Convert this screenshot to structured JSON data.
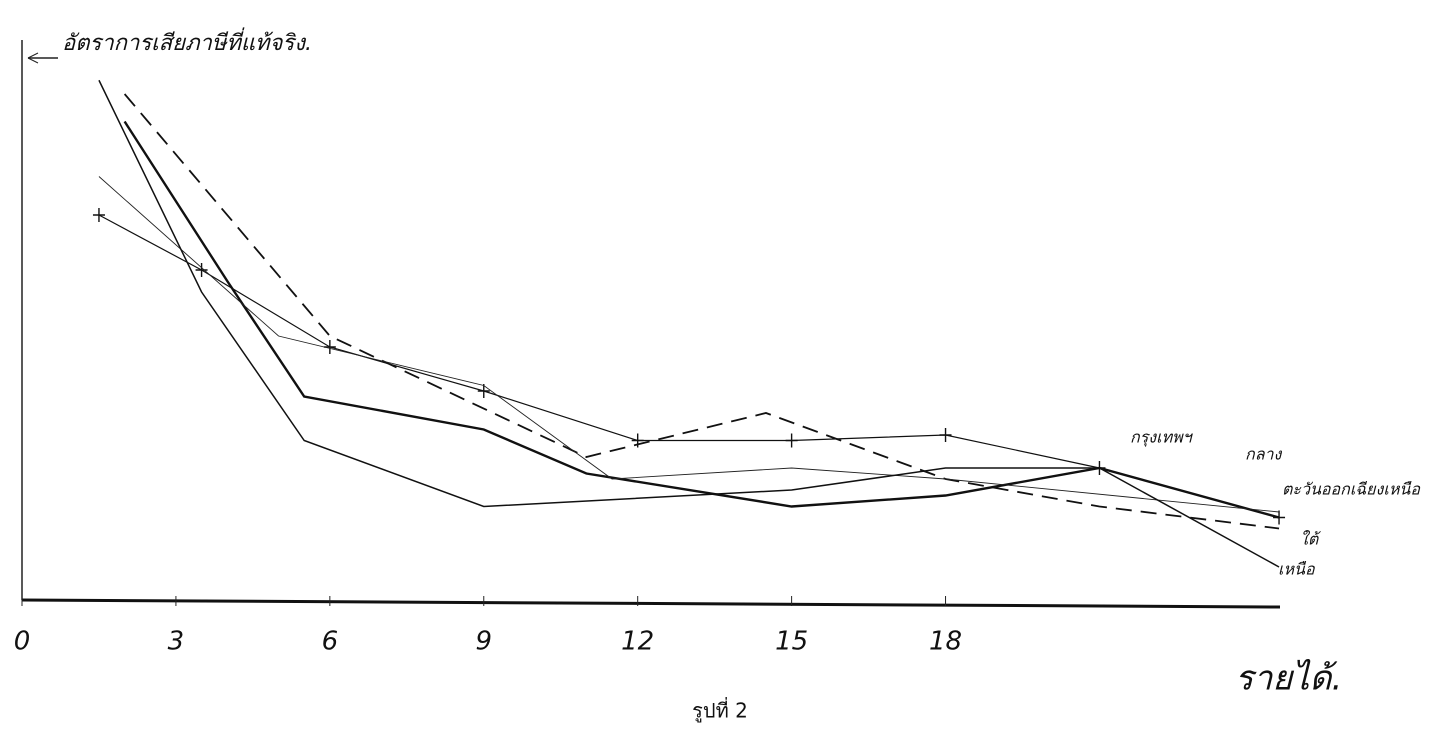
{
  "chart_data": {
    "type": "line",
    "title": "อัตราการเสียภาษีที่แท้จริง.",
    "x_label": "รายได้.",
    "caption": "รูปที่ 2",
    "xlim": [
      0,
      26
    ],
    "ylim": [
      0,
      10
    ],
    "xticks": [
      0,
      3,
      6,
      9,
      12,
      15,
      18
    ],
    "grid": false,
    "series": [
      {
        "name": "กรุงเทพฯ",
        "color": "#111111",
        "style": "crosses",
        "x": [
          1.5,
          3.5,
          6,
          9,
          12,
          15,
          18,
          21,
          24.5
        ],
        "values": [
          7.0,
          6.0,
          4.6,
          3.8,
          2.9,
          2.9,
          3.0,
          2.4,
          1.5
        ]
      },
      {
        "name": "กลาง",
        "color": "#111111",
        "style": "thick",
        "x": [
          2,
          4,
          5.5,
          9,
          11,
          15,
          18,
          21,
          24.5
        ],
        "values": [
          8.7,
          5.8,
          3.7,
          3.1,
          2.3,
          1.7,
          1.9,
          2.4,
          1.5
        ]
      },
      {
        "name": "ตะวันออกเฉียงเหนือ",
        "color": "#111111",
        "style": "dashed",
        "x": [
          2,
          6,
          11,
          14.5,
          18,
          21,
          24.5
        ],
        "values": [
          9.2,
          4.8,
          2.6,
          3.4,
          2.2,
          1.7,
          1.3
        ]
      },
      {
        "name": "ใต้",
        "color": "#222222",
        "style": "thin",
        "x": [
          1.5,
          5,
          9,
          11.5,
          15,
          18,
          24.5
        ],
        "values": [
          7.7,
          4.8,
          3.9,
          2.2,
          2.4,
          2.2,
          1.6
        ]
      },
      {
        "name": "เหนือ",
        "color": "#111111",
        "style": "solid",
        "x": [
          1.5,
          3.5,
          5.5,
          9,
          15,
          18,
          21,
          24.5
        ],
        "values": [
          9.45,
          5.6,
          2.9,
          1.7,
          2.0,
          2.4,
          2.4,
          0.6
        ]
      }
    ]
  }
}
